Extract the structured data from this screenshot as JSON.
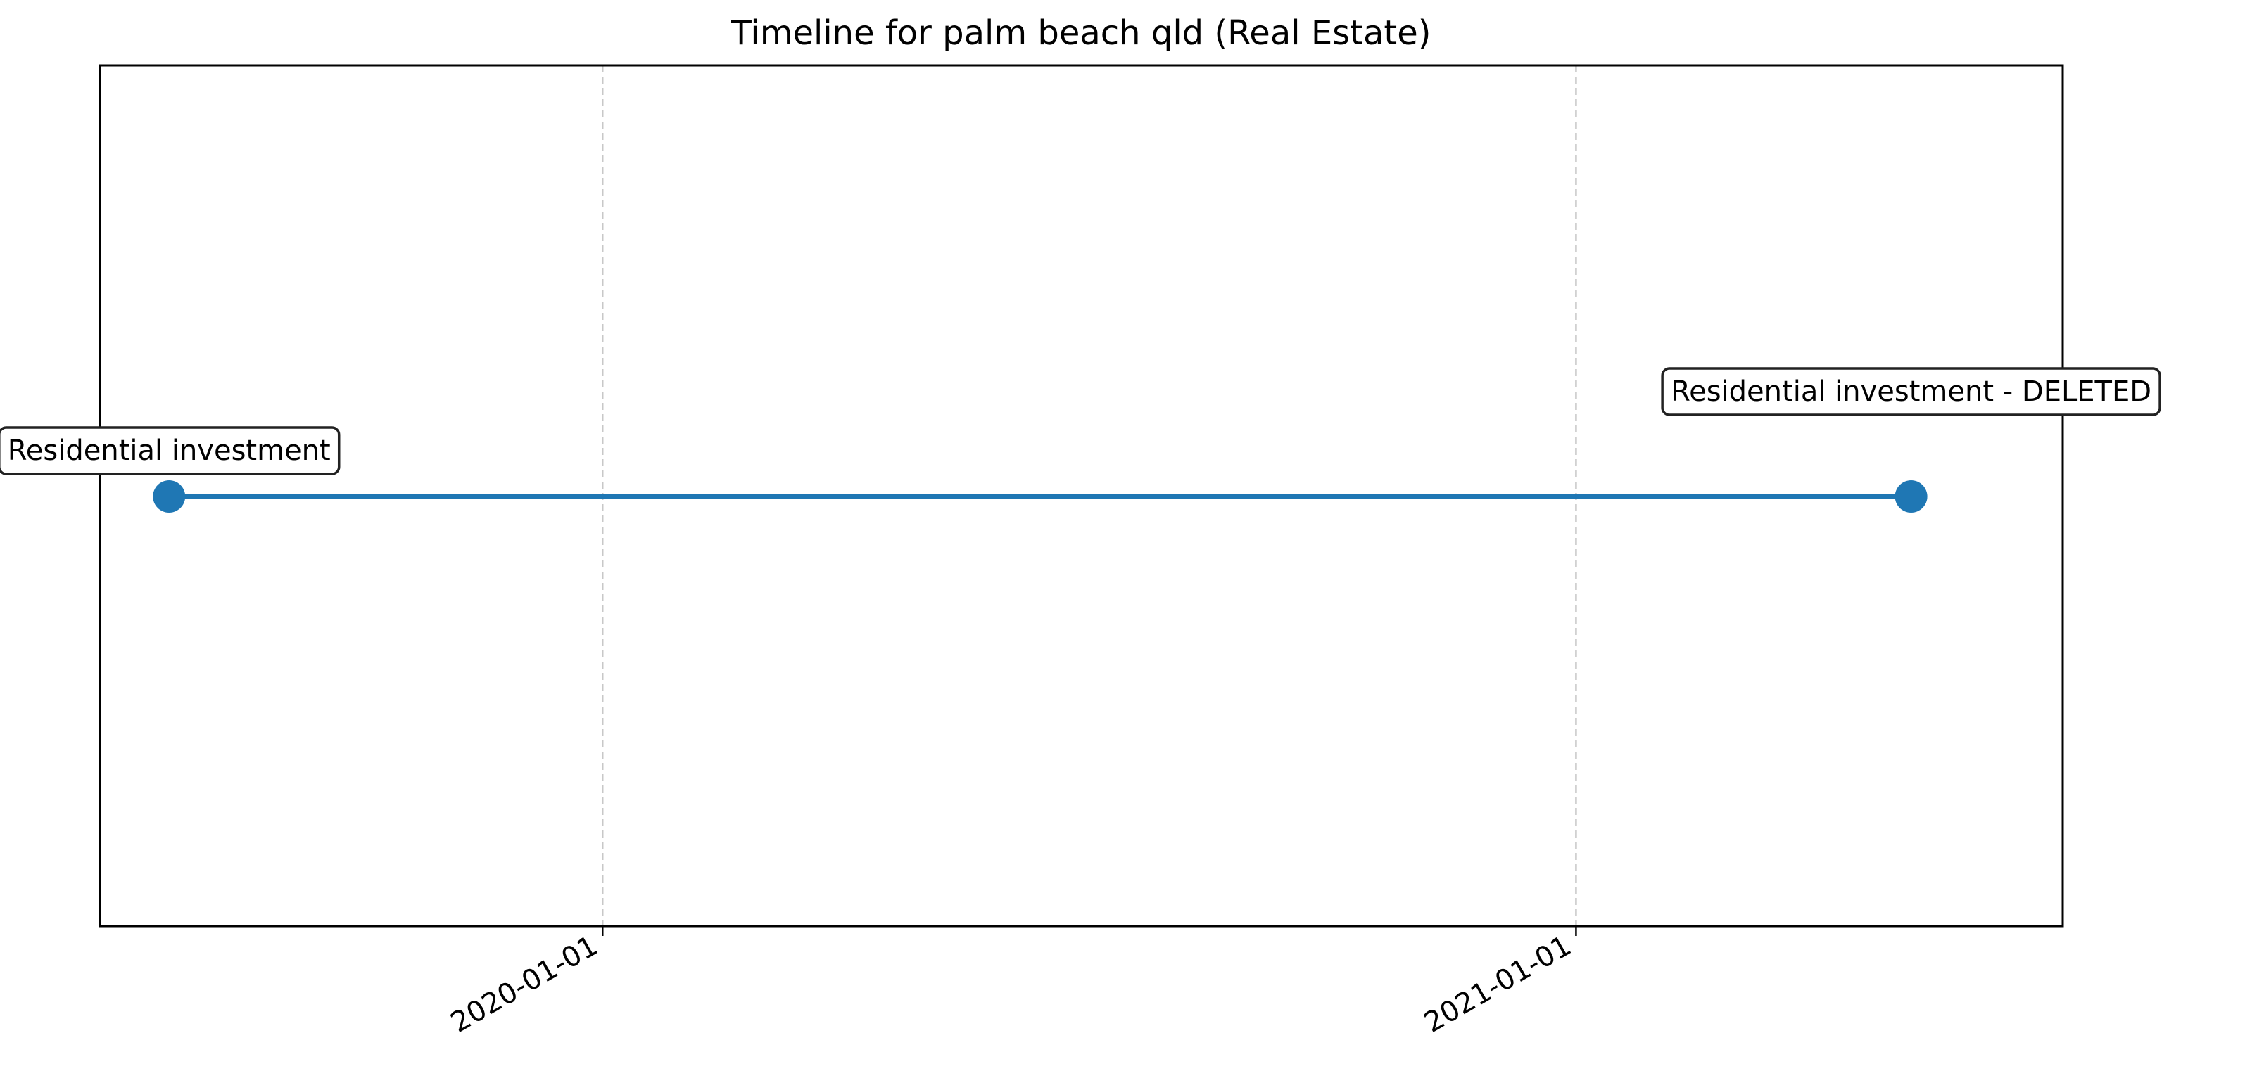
{
  "chart_data": {
    "type": "line",
    "title": "Timeline for palm beach qld (Real Estate)",
    "xlabel": "",
    "ylabel": "",
    "x_axis_type": "date",
    "xlim": [
      "2019-06-26",
      "2021-07-03"
    ],
    "x_ticks": [
      "2020-01-01",
      "2021-01-01"
    ],
    "y_axis_visible": false,
    "grid": "x-only, dashed",
    "legend": "none",
    "series": [
      {
        "color": "#1f77b4",
        "points": [
          {
            "x": "2019-07-22",
            "label": "Residential investment"
          },
          {
            "x": "2021-05-07",
            "label": "Residential investment - DELETED"
          }
        ]
      }
    ]
  }
}
